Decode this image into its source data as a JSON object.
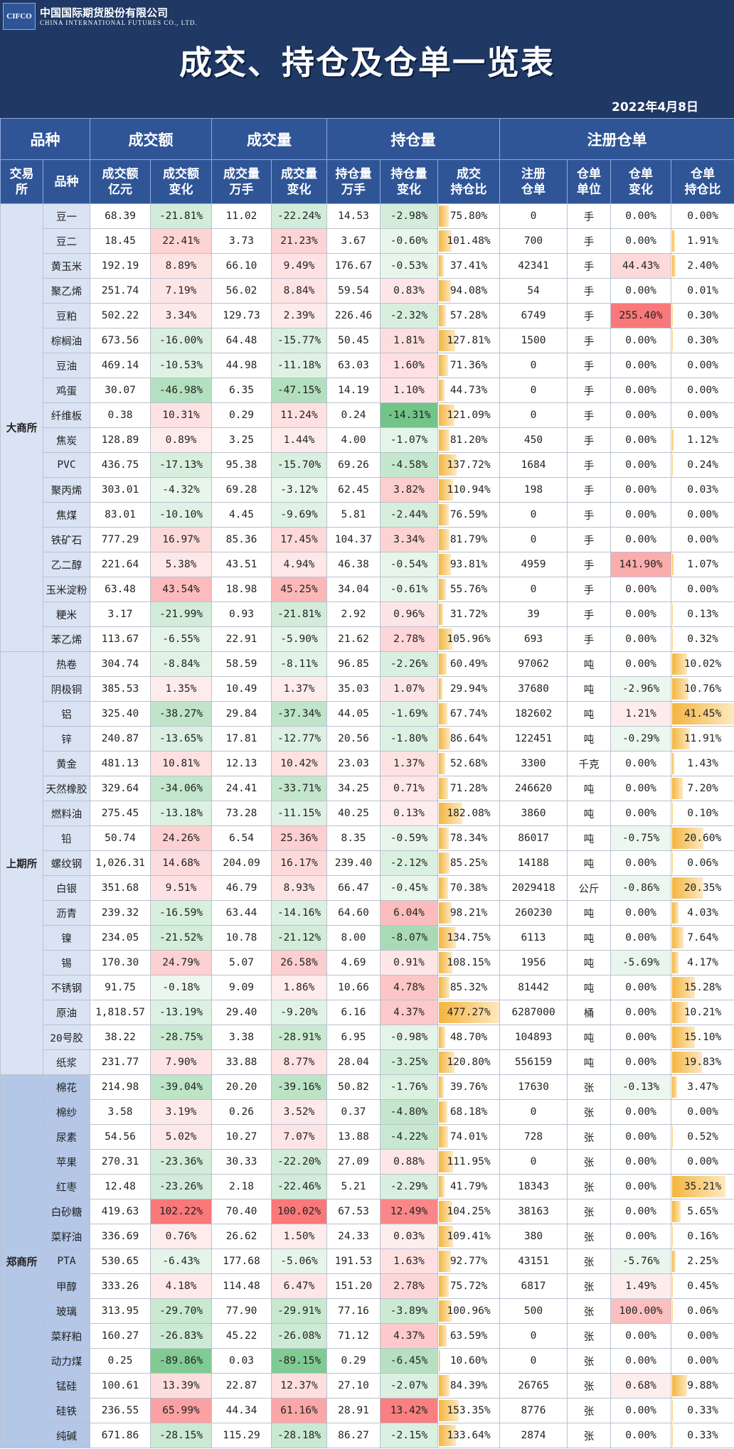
{
  "header": {
    "company": "中国国际期货股份有限公司",
    "company_en": "CHINA INTERNATIONAL FUTURES CO., LTD.",
    "logo": "CIFCO",
    "title": "成交、持仓及仓单一览表",
    "date": "2022年4月8日"
  },
  "table": {
    "group_headers": [
      {
        "text": "品种",
        "span": 2
      },
      {
        "text": "成交额",
        "span": 2
      },
      {
        "text": "成交量",
        "span": 2
      },
      {
        "text": "持仓量",
        "span": 3
      },
      {
        "text": "注册仓单",
        "span": 4
      }
    ],
    "sub_headers": [
      "交易\n所",
      "品种",
      "成交额\n亿元",
      "成交额\n变化",
      "成交量\n万手",
      "成交量\n变化",
      "持仓量\n万手",
      "持仓量\n变化",
      "成交\n持仓比",
      "注册\n仓单",
      "仓单\n单位",
      "仓单\n变化",
      "仓单\n持仓比"
    ],
    "exchanges": [
      {
        "name": "大商所",
        "rows": [
          [
            "豆一",
            "68.39",
            "-21.81%",
            "11.02",
            "-22.24%",
            "14.53",
            "-2.98%",
            "75.80%",
            "0",
            "手",
            "0.00%",
            "0.00%"
          ],
          [
            "豆二",
            "18.45",
            "22.41%",
            "3.73",
            "21.23%",
            "3.67",
            "-0.60%",
            "101.48%",
            "700",
            "手",
            "0.00%",
            "1.91%"
          ],
          [
            "黄玉米",
            "192.19",
            "8.89%",
            "66.10",
            "9.49%",
            "176.67",
            "-0.53%",
            "37.41%",
            "42341",
            "手",
            "44.43%",
            "2.40%"
          ],
          [
            "聚乙烯",
            "251.74",
            "7.19%",
            "56.02",
            "8.84%",
            "59.54",
            "0.83%",
            "94.08%",
            "54",
            "手",
            "0.00%",
            "0.01%"
          ],
          [
            "豆粕",
            "502.22",
            "3.34%",
            "129.73",
            "2.39%",
            "226.46",
            "-2.32%",
            "57.28%",
            "6749",
            "手",
            "255.40%",
            "0.30%"
          ],
          [
            "棕榈油",
            "673.56",
            "-16.00%",
            "64.48",
            "-15.77%",
            "50.45",
            "1.81%",
            "127.81%",
            "1500",
            "手",
            "0.00%",
            "0.30%"
          ],
          [
            "豆油",
            "469.14",
            "-10.53%",
            "44.98",
            "-11.18%",
            "63.03",
            "1.60%",
            "71.36%",
            "0",
            "手",
            "0.00%",
            "0.00%"
          ],
          [
            "鸡蛋",
            "30.07",
            "-46.98%",
            "6.35",
            "-47.15%",
            "14.19",
            "1.10%",
            "44.73%",
            "0",
            "手",
            "0.00%",
            "0.00%"
          ],
          [
            "纤维板",
            "0.38",
            "10.31%",
            "0.29",
            "11.24%",
            "0.24",
            "-14.31%",
            "121.09%",
            "0",
            "手",
            "0.00%",
            "0.00%"
          ],
          [
            "焦炭",
            "128.89",
            "0.89%",
            "3.25",
            "1.44%",
            "4.00",
            "-1.07%",
            "81.20%",
            "450",
            "手",
            "0.00%",
            "1.12%"
          ],
          [
            "PVC",
            "436.75",
            "-17.13%",
            "95.38",
            "-15.70%",
            "69.26",
            "-4.58%",
            "137.72%",
            "1684",
            "手",
            "0.00%",
            "0.24%"
          ],
          [
            "聚丙烯",
            "303.01",
            "-4.32%",
            "69.28",
            "-3.12%",
            "62.45",
            "3.82%",
            "110.94%",
            "198",
            "手",
            "0.00%",
            "0.03%"
          ],
          [
            "焦煤",
            "83.01",
            "-10.10%",
            "4.45",
            "-9.69%",
            "5.81",
            "-2.44%",
            "76.59%",
            "0",
            "手",
            "0.00%",
            "0.00%"
          ],
          [
            "铁矿石",
            "777.29",
            "16.97%",
            "85.36",
            "17.45%",
            "104.37",
            "3.34%",
            "81.79%",
            "0",
            "手",
            "0.00%",
            "0.00%"
          ],
          [
            "乙二醇",
            "221.64",
            "5.38%",
            "43.51",
            "4.94%",
            "46.38",
            "-0.54%",
            "93.81%",
            "4959",
            "手",
            "141.90%",
            "1.07%"
          ],
          [
            "玉米淀粉",
            "63.48",
            "43.54%",
            "18.98",
            "45.25%",
            "34.04",
            "-0.61%",
            "55.76%",
            "0",
            "手",
            "0.00%",
            "0.00%"
          ],
          [
            "粳米",
            "3.17",
            "-21.99%",
            "0.93",
            "-21.81%",
            "2.92",
            "0.96%",
            "31.72%",
            "39",
            "手",
            "0.00%",
            "0.13%"
          ],
          [
            "苯乙烯",
            "113.67",
            "-6.55%",
            "22.91",
            "-5.90%",
            "21.62",
            "2.78%",
            "105.96%",
            "693",
            "手",
            "0.00%",
            "0.32%"
          ]
        ]
      },
      {
        "name": "上期所",
        "rows": [
          [
            "热卷",
            "304.74",
            "-8.84%",
            "58.59",
            "-8.11%",
            "96.85",
            "-2.26%",
            "60.49%",
            "97062",
            "吨",
            "0.00%",
            "10.02%"
          ],
          [
            "阴极铜",
            "385.53",
            "1.35%",
            "10.49",
            "1.37%",
            "35.03",
            "1.07%",
            "29.94%",
            "37680",
            "吨",
            "-2.96%",
            "10.76%"
          ],
          [
            "铝",
            "325.40",
            "-38.27%",
            "29.84",
            "-37.34%",
            "44.05",
            "-1.69%",
            "67.74%",
            "182602",
            "吨",
            "1.21%",
            "41.45%"
          ],
          [
            "锌",
            "240.87",
            "-13.65%",
            "17.81",
            "-12.77%",
            "20.56",
            "-1.80%",
            "86.64%",
            "122451",
            "吨",
            "-0.29%",
            "11.91%"
          ],
          [
            "黄金",
            "481.13",
            "10.81%",
            "12.13",
            "10.42%",
            "23.03",
            "1.37%",
            "52.68%",
            "3300",
            "千克",
            "0.00%",
            "1.43%"
          ],
          [
            "天然橡胶",
            "329.64",
            "-34.06%",
            "24.41",
            "-33.71%",
            "34.25",
            "0.71%",
            "71.28%",
            "246620",
            "吨",
            "0.00%",
            "7.20%"
          ],
          [
            "燃料油",
            "275.45",
            "-13.18%",
            "73.28",
            "-11.15%",
            "40.25",
            "0.13%",
            "182.08%",
            "3860",
            "吨",
            "0.00%",
            "0.10%"
          ],
          [
            "铅",
            "50.74",
            "24.26%",
            "6.54",
            "25.36%",
            "8.35",
            "-0.59%",
            "78.34%",
            "86017",
            "吨",
            "-0.75%",
            "20.60%"
          ],
          [
            "螺纹钢",
            "1,026.31",
            "14.68%",
            "204.09",
            "16.17%",
            "239.40",
            "-2.12%",
            "85.25%",
            "14188",
            "吨",
            "0.00%",
            "0.06%"
          ],
          [
            "白银",
            "351.68",
            "9.51%",
            "46.79",
            "8.93%",
            "66.47",
            "-0.45%",
            "70.38%",
            "2029418",
            "公斤",
            "-0.86%",
            "20.35%"
          ],
          [
            "沥青",
            "239.32",
            "-16.59%",
            "63.44",
            "-14.16%",
            "64.60",
            "6.04%",
            "98.21%",
            "260230",
            "吨",
            "0.00%",
            "4.03%"
          ],
          [
            "镍",
            "234.05",
            "-21.52%",
            "10.78",
            "-21.12%",
            "8.00",
            "-8.07%",
            "134.75%",
            "6113",
            "吨",
            "0.00%",
            "7.64%"
          ],
          [
            "锡",
            "170.30",
            "24.79%",
            "5.07",
            "26.58%",
            "4.69",
            "0.91%",
            "108.15%",
            "1956",
            "吨",
            "-5.69%",
            "4.17%"
          ],
          [
            "不锈钢",
            "91.75",
            "-0.18%",
            "9.09",
            "1.86%",
            "10.66",
            "4.78%",
            "85.32%",
            "81442",
            "吨",
            "0.00%",
            "15.28%"
          ],
          [
            "原油",
            "1,818.57",
            "-13.19%",
            "29.40",
            "-9.20%",
            "6.16",
            "4.37%",
            "477.27%",
            "6287000",
            "桶",
            "0.00%",
            "10.21%"
          ],
          [
            "20号胶",
            "38.22",
            "-28.75%",
            "3.38",
            "-28.91%",
            "6.95",
            "-0.98%",
            "48.70%",
            "104893",
            "吨",
            "0.00%",
            "15.10%"
          ],
          [
            "纸浆",
            "231.77",
            "7.90%",
            "33.88",
            "8.77%",
            "28.04",
            "-3.25%",
            "120.80%",
            "556159",
            "吨",
            "0.00%",
            "19.83%"
          ]
        ]
      },
      {
        "name": "郑商所",
        "rows": [
          [
            "棉花",
            "214.98",
            "-39.04%",
            "20.20",
            "-39.16%",
            "50.82",
            "-1.76%",
            "39.76%",
            "17630",
            "张",
            "-0.13%",
            "3.47%"
          ],
          [
            "棉纱",
            "3.58",
            "3.19%",
            "0.26",
            "3.52%",
            "0.37",
            "-4.80%",
            "68.18%",
            "0",
            "张",
            "0.00%",
            "0.00%"
          ],
          [
            "尿素",
            "54.56",
            "5.02%",
            "10.27",
            "7.07%",
            "13.88",
            "-4.22%",
            "74.01%",
            "728",
            "张",
            "0.00%",
            "0.52%"
          ],
          [
            "苹果",
            "270.31",
            "-23.36%",
            "30.33",
            "-22.20%",
            "27.09",
            "0.88%",
            "111.95%",
            "0",
            "张",
            "0.00%",
            "0.00%"
          ],
          [
            "红枣",
            "12.48",
            "-23.26%",
            "2.18",
            "-22.46%",
            "5.21",
            "-2.29%",
            "41.79%",
            "18343",
            "张",
            "0.00%",
            "35.21%"
          ],
          [
            "白砂糖",
            "419.63",
            "102.22%",
            "70.40",
            "100.02%",
            "67.53",
            "12.49%",
            "104.25%",
            "38163",
            "张",
            "0.00%",
            "5.65%"
          ],
          [
            "菜籽油",
            "336.69",
            "0.76%",
            "26.62",
            "1.50%",
            "24.33",
            "0.03%",
            "109.41%",
            "380",
            "张",
            "0.00%",
            "0.16%"
          ],
          [
            "PTA",
            "530.65",
            "-6.43%",
            "177.68",
            "-5.06%",
            "191.53",
            "1.63%",
            "92.77%",
            "43151",
            "张",
            "-5.76%",
            "2.25%"
          ],
          [
            "甲醇",
            "333.26",
            "4.18%",
            "114.48",
            "6.47%",
            "151.20",
            "2.78%",
            "75.72%",
            "6817",
            "张",
            "1.49%",
            "0.45%"
          ],
          [
            "玻璃",
            "313.95",
            "-29.70%",
            "77.90",
            "-29.91%",
            "77.16",
            "-3.89%",
            "100.96%",
            "500",
            "张",
            "100.00%",
            "0.06%"
          ],
          [
            "菜籽粕",
            "160.27",
            "-26.83%",
            "45.22",
            "-26.08%",
            "71.12",
            "4.37%",
            "63.59%",
            "0",
            "张",
            "0.00%",
            "0.00%"
          ],
          [
            "动力煤",
            "0.25",
            "-89.86%",
            "0.03",
            "-89.15%",
            "0.29",
            "-6.45%",
            "10.60%",
            "0",
            "张",
            "0.00%",
            "0.00%"
          ],
          [
            "锰硅",
            "100.61",
            "13.39%",
            "22.87",
            "12.37%",
            "27.10",
            "-2.07%",
            "84.39%",
            "26765",
            "张",
            "0.68%",
            "9.88%"
          ],
          [
            "硅铁",
            "236.55",
            "65.99%",
            "44.34",
            "61.16%",
            "28.91",
            "13.42%",
            "153.35%",
            "8776",
            "张",
            "0.00%",
            "0.33%"
          ],
          [
            "纯碱",
            "671.86",
            "-28.15%",
            "115.29",
            "-28.18%",
            "86.27",
            "-2.15%",
            "133.64%",
            "2874",
            "张",
            "0.00%",
            "0.33%"
          ]
        ]
      }
    ]
  }
}
